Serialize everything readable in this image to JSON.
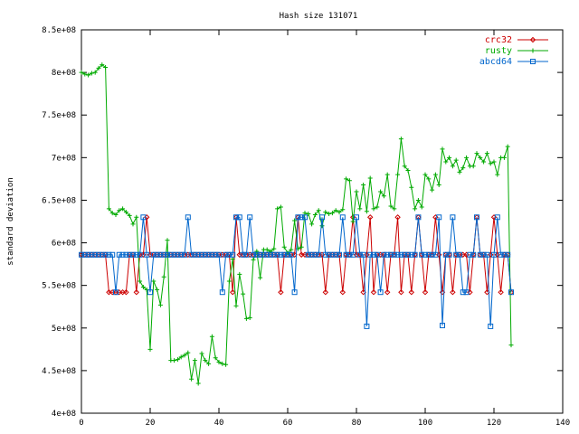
{
  "chart_data": {
    "type": "line",
    "title": "Hash size 131071",
    "xlabel": "",
    "ylabel": "standard deviation",
    "xlim": [
      0,
      140
    ],
    "ylim": [
      400000000,
      850000000
    ],
    "x_ticks": [
      0,
      20,
      40,
      60,
      80,
      100,
      120,
      140
    ],
    "x_tick_labels": [
      "0",
      "20",
      "40",
      "60",
      "80",
      "100",
      "120",
      "140"
    ],
    "y_ticks": [
      400000000,
      450000000,
      500000000,
      550000000,
      600000000,
      650000000,
      700000000,
      750000000,
      800000000,
      850000000
    ],
    "y_tick_labels": [
      "4e+08",
      "4.5e+08",
      "5e+08",
      "5.5e+08",
      "6e+08",
      "6.5e+08",
      "7e+08",
      "7.5e+08",
      "8e+08",
      "8.5e+08"
    ],
    "grid": false,
    "legend_position": "top-right",
    "series": [
      {
        "name": "crc32",
        "color": "#cc0000",
        "marker": "diamond",
        "x": [
          0,
          1,
          2,
          3,
          4,
          5,
          6,
          7,
          8,
          9,
          10,
          11,
          12,
          13,
          14,
          15,
          16,
          17,
          18,
          19,
          20,
          21,
          22,
          23,
          24,
          25,
          26,
          27,
          28,
          29,
          30,
          31,
          32,
          33,
          34,
          35,
          36,
          37,
          38,
          39,
          40,
          41,
          42,
          43,
          44,
          45,
          46,
          47,
          48,
          49,
          50,
          51,
          52,
          53,
          54,
          55,
          56,
          57,
          58,
          59,
          60,
          61,
          62,
          63,
          64,
          65,
          66,
          67,
          68,
          69,
          70,
          71,
          72,
          73,
          74,
          75,
          76,
          77,
          78,
          79,
          80,
          81,
          82,
          83,
          84,
          85,
          86,
          87,
          88,
          89,
          90,
          91,
          92,
          93,
          94,
          95,
          96,
          97,
          98,
          99,
          100,
          101,
          102,
          103,
          104,
          105,
          106,
          107,
          108,
          109,
          110,
          111,
          112,
          113,
          114,
          115,
          116,
          117,
          118,
          119,
          120,
          121,
          122,
          123,
          124,
          125
        ],
        "y": [
          586000000,
          586000000,
          586000000,
          586000000,
          586000000,
          586000000,
          586000000,
          586000000,
          542000000,
          542000000,
          542000000,
          542000000,
          542000000,
          542000000,
          586000000,
          586000000,
          542000000,
          586000000,
          586000000,
          630000000,
          586000000,
          586000000,
          586000000,
          586000000,
          586000000,
          586000000,
          586000000,
          586000000,
          586000000,
          586000000,
          586000000,
          586000000,
          586000000,
          586000000,
          586000000,
          586000000,
          586000000,
          586000000,
          586000000,
          586000000,
          586000000,
          586000000,
          586000000,
          586000000,
          542000000,
          630000000,
          586000000,
          586000000,
          586000000,
          586000000,
          586000000,
          586000000,
          586000000,
          586000000,
          586000000,
          586000000,
          586000000,
          586000000,
          542000000,
          586000000,
          586000000,
          586000000,
          586000000,
          630000000,
          586000000,
          586000000,
          586000000,
          586000000,
          586000000,
          586000000,
          586000000,
          542000000,
          586000000,
          586000000,
          586000000,
          586000000,
          542000000,
          586000000,
          586000000,
          630000000,
          586000000,
          586000000,
          542000000,
          586000000,
          630000000,
          542000000,
          586000000,
          586000000,
          586000000,
          542000000,
          586000000,
          586000000,
          630000000,
          542000000,
          586000000,
          586000000,
          542000000,
          586000000,
          630000000,
          586000000,
          542000000,
          586000000,
          586000000,
          630000000,
          586000000,
          542000000,
          586000000,
          586000000,
          542000000,
          586000000,
          586000000,
          586000000,
          586000000,
          542000000,
          586000000,
          630000000,
          586000000,
          586000000,
          542000000,
          586000000,
          630000000,
          586000000,
          542000000,
          586000000,
          586000000,
          542000000
        ]
      },
      {
        "name": "rusty",
        "color": "#00aa00",
        "marker": "plus",
        "x": [
          0,
          1,
          2,
          3,
          4,
          5,
          6,
          7,
          8,
          9,
          10,
          11,
          12,
          13,
          14,
          15,
          16,
          17,
          18,
          19,
          20,
          21,
          22,
          23,
          24,
          25,
          26,
          27,
          28,
          29,
          30,
          31,
          32,
          33,
          34,
          35,
          36,
          37,
          38,
          39,
          40,
          41,
          42,
          43,
          44,
          45,
          46,
          47,
          48,
          49,
          50,
          51,
          52,
          53,
          54,
          55,
          56,
          57,
          58,
          59,
          60,
          61,
          62,
          63,
          64,
          65,
          66,
          67,
          68,
          69,
          70,
          71,
          72,
          73,
          74,
          75,
          76,
          77,
          78,
          79,
          80,
          81,
          82,
          83,
          84,
          85,
          86,
          87,
          88,
          89,
          90,
          91,
          92,
          93,
          94,
          95,
          96,
          97,
          98,
          99,
          100,
          101,
          102,
          103,
          104,
          105,
          106,
          107,
          108,
          109,
          110,
          111,
          112,
          113,
          114,
          115,
          116,
          117,
          118,
          119,
          120,
          121,
          122,
          123,
          124,
          125
        ],
        "y": [
          800000000,
          798000000,
          797000000,
          799000000,
          800000000,
          805000000,
          809000000,
          806000000,
          640000000,
          635000000,
          633000000,
          638000000,
          640000000,
          636000000,
          632000000,
          622000000,
          630000000,
          555000000,
          548000000,
          545000000,
          475000000,
          555000000,
          545000000,
          527000000,
          560000000,
          603000000,
          462000000,
          462000000,
          463000000,
          466000000,
          468000000,
          471000000,
          440000000,
          462000000,
          435000000,
          470000000,
          462000000,
          458000000,
          490000000,
          465000000,
          460000000,
          458000000,
          457000000,
          555000000,
          581000000,
          526000000,
          563000000,
          540000000,
          511000000,
          512000000,
          580000000,
          590000000,
          559000000,
          592000000,
          592000000,
          590000000,
          593000000,
          640000000,
          642000000,
          595000000,
          588000000,
          592000000,
          626000000,
          593000000,
          595000000,
          635000000,
          634000000,
          622000000,
          633000000,
          638000000,
          620000000,
          636000000,
          634000000,
          635000000,
          638000000,
          636000000,
          639000000,
          675000000,
          673000000,
          625000000,
          660000000,
          640000000,
          668000000,
          637000000,
          676000000,
          640000000,
          642000000,
          660000000,
          655000000,
          680000000,
          643000000,
          640000000,
          680000000,
          722000000,
          690000000,
          685000000,
          665000000,
          640000000,
          650000000,
          642000000,
          680000000,
          675000000,
          662000000,
          680000000,
          668000000,
          710000000,
          695000000,
          700000000,
          690000000,
          697000000,
          683000000,
          688000000,
          700000000,
          690000000,
          690000000,
          705000000,
          700000000,
          695000000,
          705000000,
          693000000,
          695000000,
          680000000,
          700000000,
          700000000,
          713000000,
          480000000
        ]
      },
      {
        "name": "abcd64",
        "color": "#0066cc",
        "marker": "square",
        "x": [
          0,
          1,
          2,
          3,
          4,
          5,
          6,
          7,
          8,
          9,
          10,
          11,
          12,
          13,
          14,
          15,
          16,
          17,
          18,
          19,
          20,
          21,
          22,
          23,
          24,
          25,
          26,
          27,
          28,
          29,
          30,
          31,
          32,
          33,
          34,
          35,
          36,
          37,
          38,
          39,
          40,
          41,
          42,
          43,
          44,
          45,
          46,
          47,
          48,
          49,
          50,
          51,
          52,
          53,
          54,
          55,
          56,
          57,
          58,
          59,
          60,
          61,
          62,
          63,
          64,
          65,
          66,
          67,
          68,
          69,
          70,
          71,
          72,
          73,
          74,
          75,
          76,
          77,
          78,
          79,
          80,
          81,
          82,
          83,
          84,
          85,
          86,
          87,
          88,
          89,
          90,
          91,
          92,
          93,
          94,
          95,
          96,
          97,
          98,
          99,
          100,
          101,
          102,
          103,
          104,
          105,
          106,
          107,
          108,
          109,
          110,
          111,
          112,
          113,
          114,
          115,
          116,
          117,
          118,
          119,
          120,
          121,
          122,
          123,
          124,
          125
        ],
        "y": [
          586000000,
          586000000,
          586000000,
          586000000,
          586000000,
          586000000,
          586000000,
          586000000,
          586000000,
          586000000,
          542000000,
          586000000,
          586000000,
          586000000,
          586000000,
          586000000,
          586000000,
          586000000,
          630000000,
          586000000,
          542000000,
          586000000,
          586000000,
          586000000,
          586000000,
          586000000,
          586000000,
          586000000,
          586000000,
          586000000,
          586000000,
          630000000,
          586000000,
          586000000,
          586000000,
          586000000,
          586000000,
          586000000,
          586000000,
          586000000,
          586000000,
          542000000,
          586000000,
          586000000,
          586000000,
          630000000,
          630000000,
          586000000,
          586000000,
          630000000,
          586000000,
          586000000,
          586000000,
          586000000,
          586000000,
          586000000,
          586000000,
          586000000,
          586000000,
          586000000,
          586000000,
          586000000,
          542000000,
          630000000,
          630000000,
          630000000,
          586000000,
          586000000,
          586000000,
          586000000,
          630000000,
          586000000,
          586000000,
          586000000,
          586000000,
          586000000,
          630000000,
          586000000,
          586000000,
          586000000,
          630000000,
          586000000,
          586000000,
          502000000,
          586000000,
          586000000,
          586000000,
          542000000,
          586000000,
          586000000,
          586000000,
          586000000,
          586000000,
          586000000,
          586000000,
          586000000,
          586000000,
          586000000,
          630000000,
          586000000,
          586000000,
          586000000,
          586000000,
          586000000,
          630000000,
          503000000,
          586000000,
          586000000,
          630000000,
          586000000,
          586000000,
          542000000,
          542000000,
          586000000,
          586000000,
          630000000,
          586000000,
          586000000,
          586000000,
          502000000,
          586000000,
          630000000,
          586000000,
          586000000,
          586000000,
          542000000
        ]
      }
    ]
  }
}
